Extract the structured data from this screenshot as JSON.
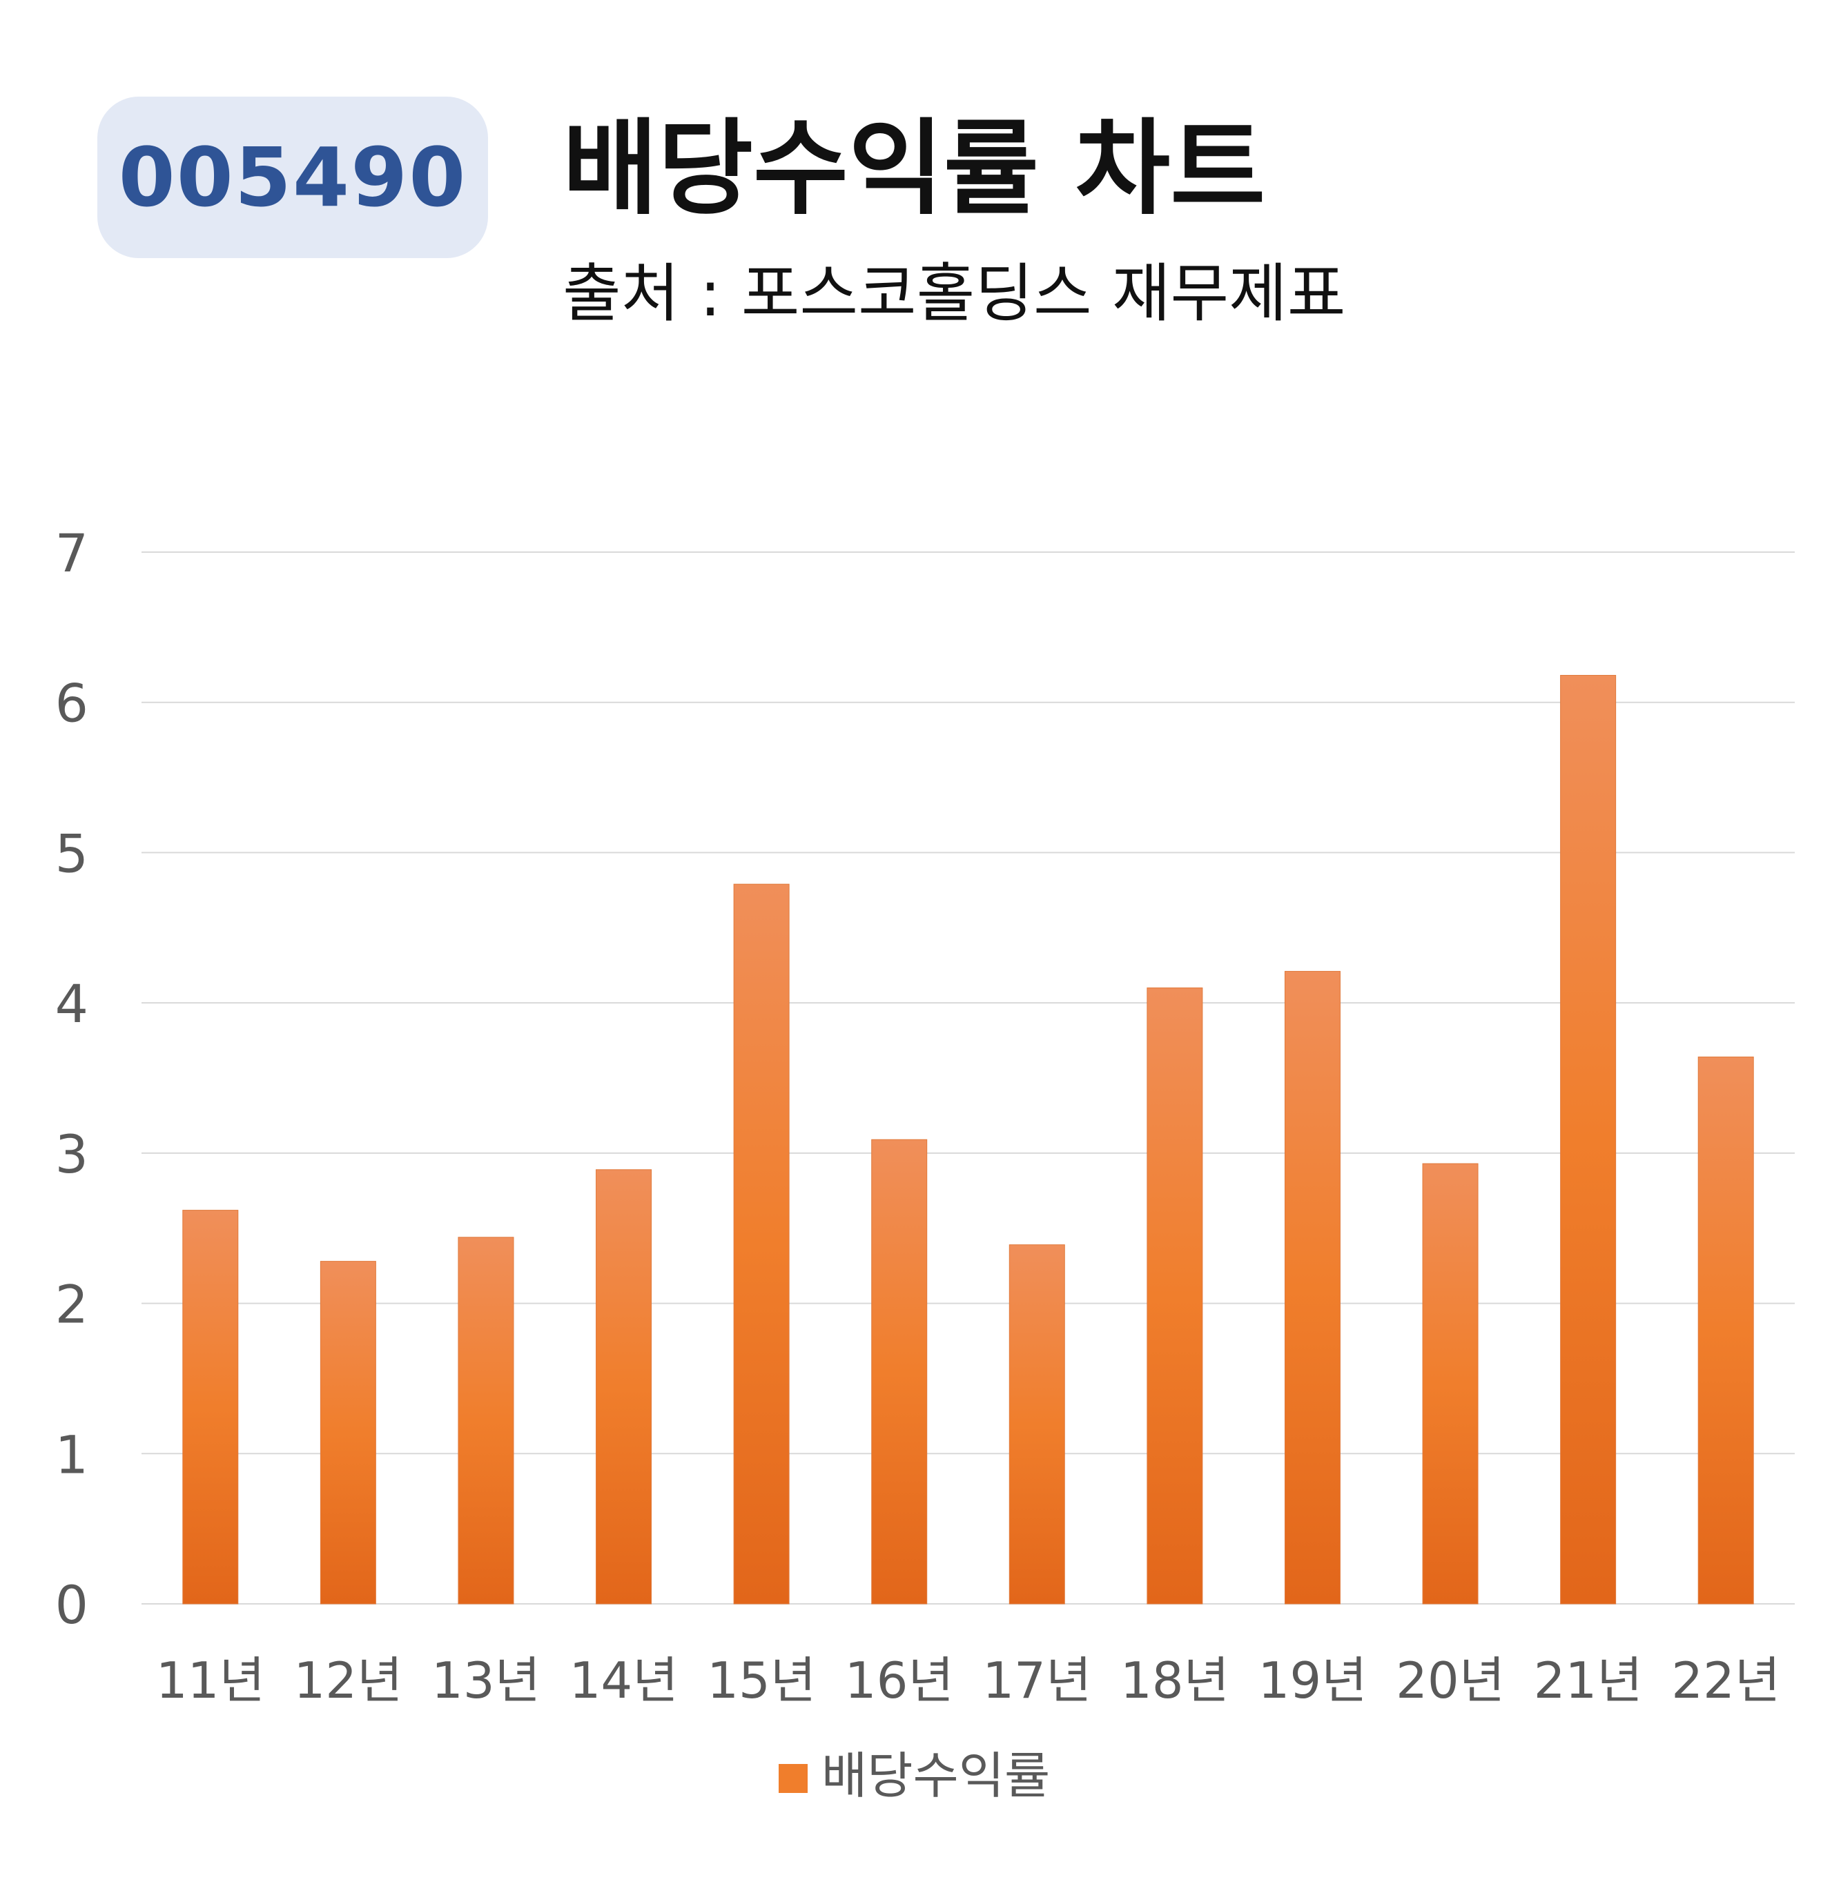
{
  "header": {
    "code_badge": "005490",
    "title": "배당수익률 차트",
    "subtitle": "출처 : 포스코홀딩스 재무제표"
  },
  "colors": {
    "bar_top": "#f08f5a",
    "bar_mid": "#f07e2c",
    "bar_bottom": "#e2661a",
    "gridline": "#d9d9d9",
    "badge_bg": "#e3e9f5",
    "badge_text": "#2f5496"
  },
  "chart_data": {
    "type": "bar",
    "categories": [
      "11년",
      "12년",
      "13년",
      "14년",
      "15년",
      "16년",
      "17년",
      "18년",
      "19년",
      "20년",
      "21년",
      "22년"
    ],
    "series": [
      {
        "name": "배당수익률",
        "values": [
          2.62,
          2.28,
          2.44,
          2.89,
          4.79,
          3.09,
          2.39,
          4.1,
          4.21,
          2.93,
          6.18,
          3.64
        ]
      }
    ],
    "ylim": [
      0,
      7
    ],
    "yticks": [
      0,
      1,
      2,
      3,
      4,
      5,
      6,
      7
    ],
    "grid": true,
    "legend": "bottom"
  }
}
